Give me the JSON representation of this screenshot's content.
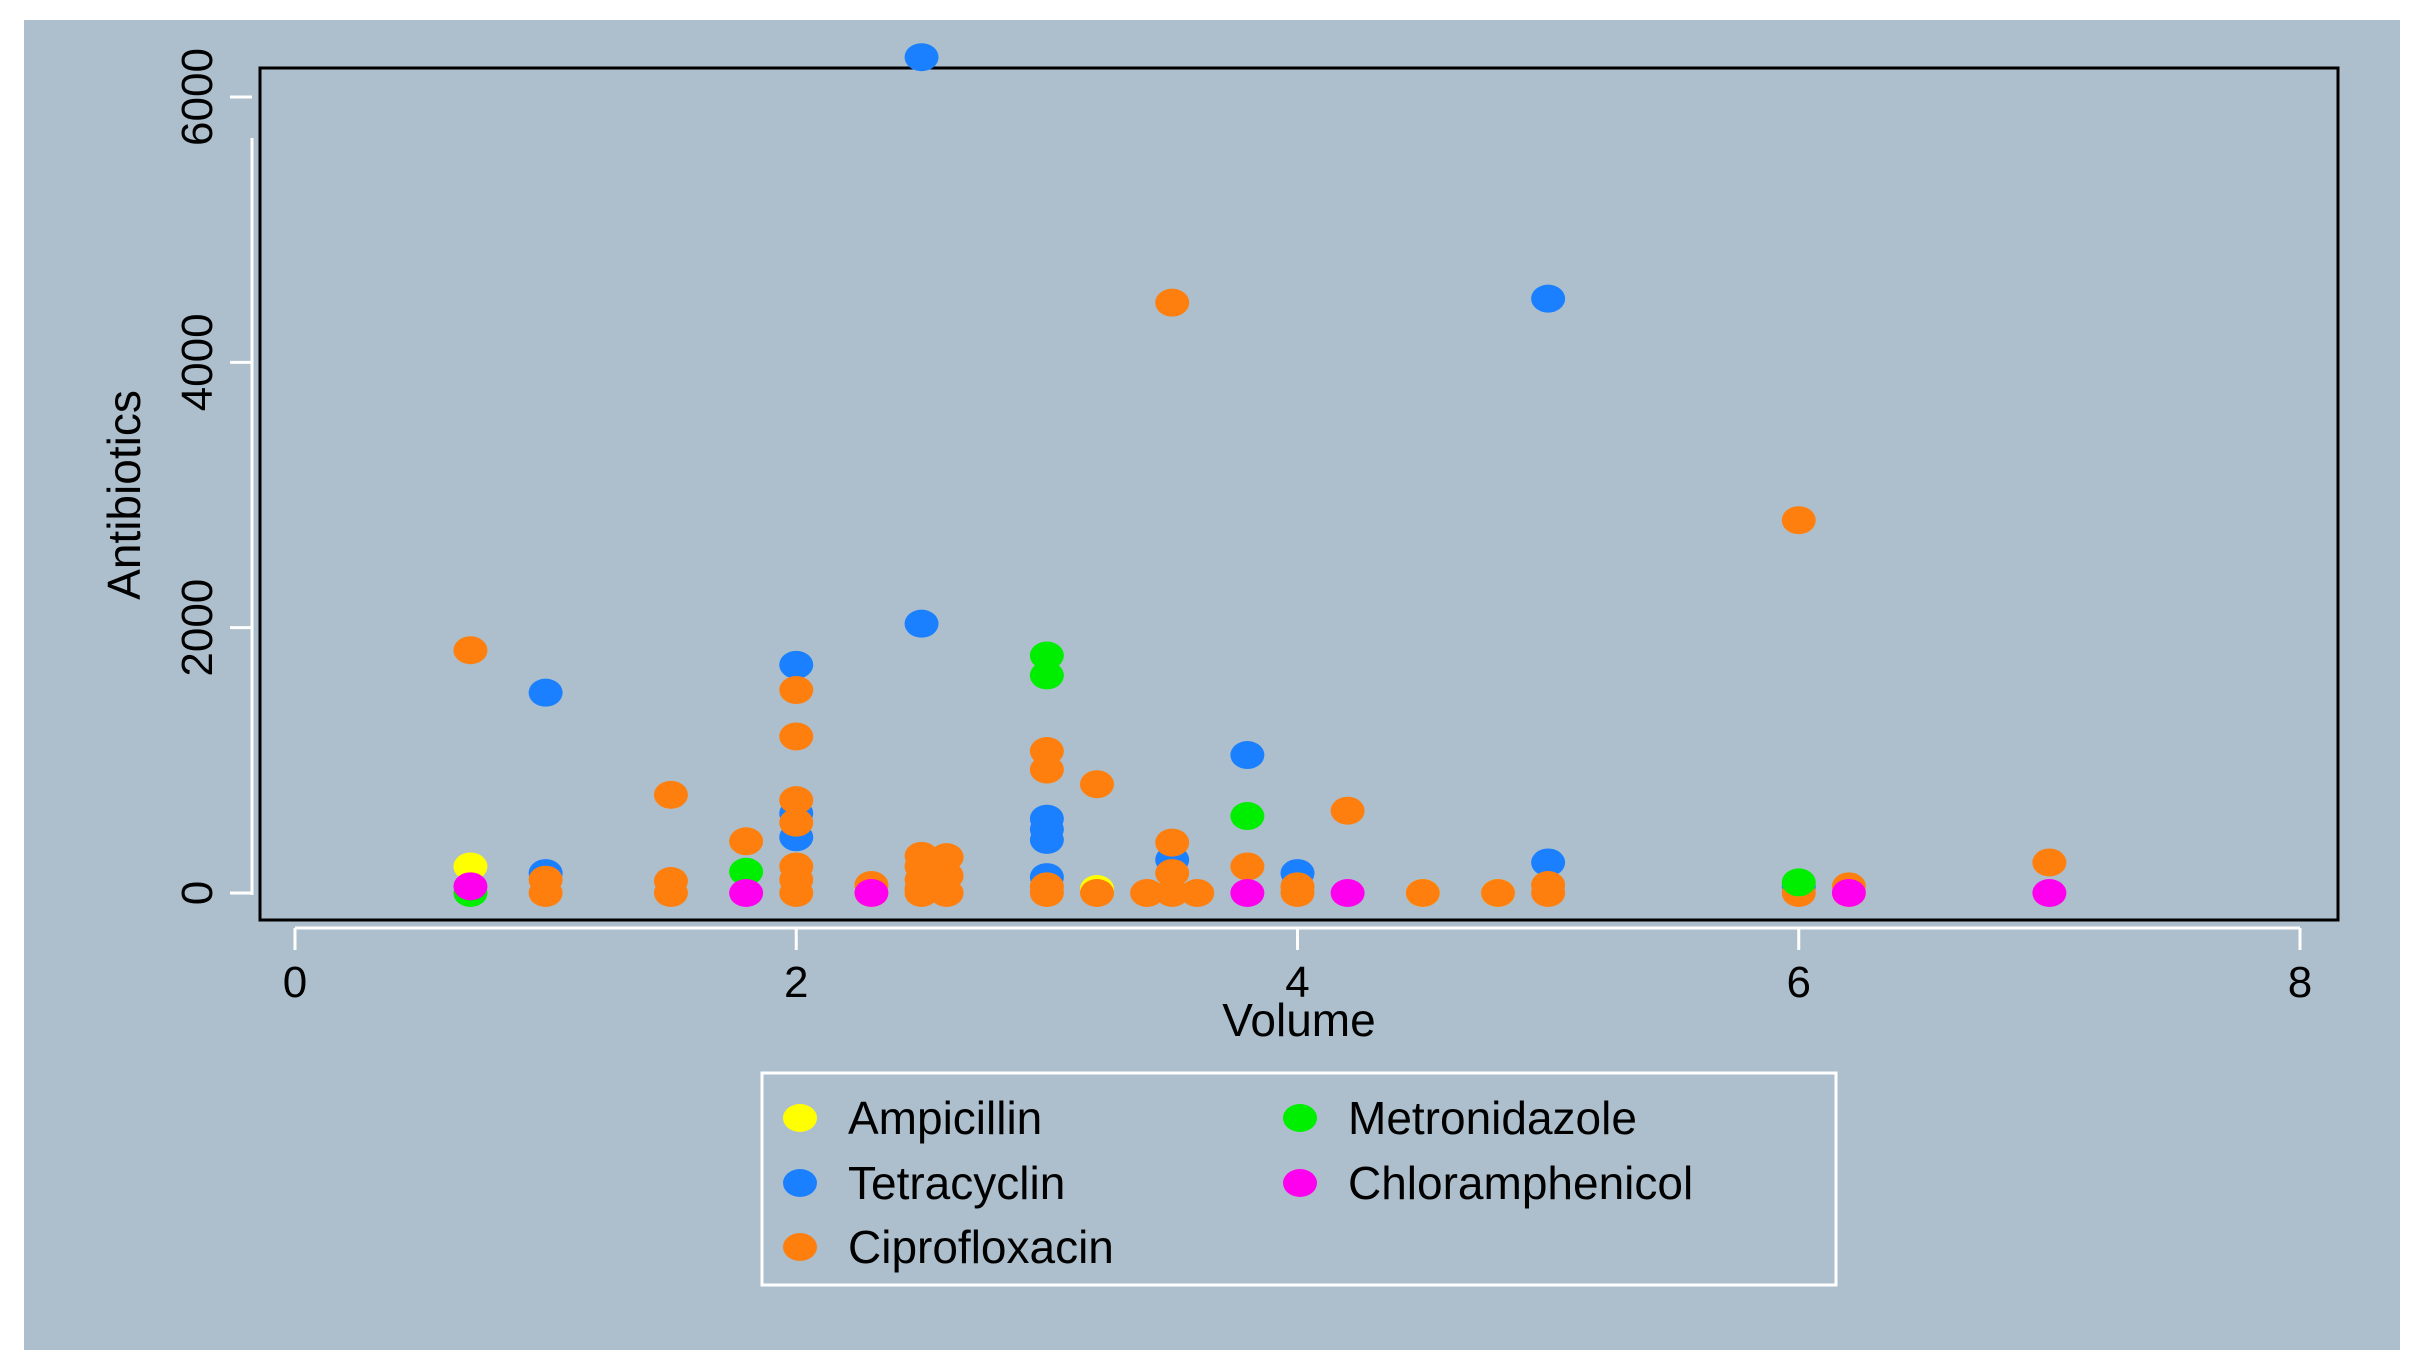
{
  "chart_data": {
    "type": "scatter",
    "title": "",
    "xlabel": "Volume",
    "ylabel": "Antibiotics",
    "xlim": [
      0,
      8
    ],
    "ylim": [
      0,
      6000
    ],
    "x_ticks": [
      0,
      2,
      4,
      6,
      8
    ],
    "y_ticks": [
      0,
      2000,
      4000,
      6000
    ],
    "x_tick_labels": [
      "0",
      "2",
      "4",
      "6",
      "8"
    ],
    "y_tick_labels": [
      "0",
      "2000",
      "4000",
      "6000"
    ],
    "grid": false,
    "legend_position": "bottom",
    "background_color": "#adbfcc",
    "series": [
      {
        "name": "Ampicillin",
        "color": "#ffff00",
        "points": [
          [
            0.7,
            200
          ],
          [
            3.2,
            30
          ],
          [
            4.5,
            0
          ],
          [
            4.8,
            0
          ],
          [
            6.2,
            0
          ],
          [
            2.3,
            0
          ]
        ]
      },
      {
        "name": "Tetracyclin",
        "color": "#1a80ff",
        "points": [
          [
            1.0,
            1510
          ],
          [
            1.0,
            150
          ],
          [
            2.0,
            1720
          ],
          [
            2.0,
            600
          ],
          [
            2.0,
            420
          ],
          [
            2.5,
            6300
          ],
          [
            2.5,
            2030
          ],
          [
            3.0,
            560
          ],
          [
            3.0,
            480
          ],
          [
            3.0,
            400
          ],
          [
            3.0,
            120
          ],
          [
            3.5,
            250
          ],
          [
            3.8,
            1040
          ],
          [
            4.0,
            150
          ],
          [
            5.0,
            4480
          ],
          [
            5.0,
            230
          ],
          [
            6.0,
            50
          ]
        ]
      },
      {
        "name": "Ciprofloxacin",
        "color": "#ff7f0e",
        "points": [
          [
            0.7,
            1830
          ],
          [
            1.0,
            100
          ],
          [
            1.0,
            0
          ],
          [
            1.5,
            740
          ],
          [
            1.5,
            90
          ],
          [
            1.5,
            0
          ],
          [
            1.8,
            390
          ],
          [
            2.0,
            1530
          ],
          [
            2.0,
            1180
          ],
          [
            2.0,
            700
          ],
          [
            2.0,
            530
          ],
          [
            2.0,
            200
          ],
          [
            2.0,
            100
          ],
          [
            2.0,
            0
          ],
          [
            2.3,
            60
          ],
          [
            2.5,
            280
          ],
          [
            2.5,
            200
          ],
          [
            2.5,
            100
          ],
          [
            2.5,
            30
          ],
          [
            2.5,
            0
          ],
          [
            2.6,
            270
          ],
          [
            2.6,
            130
          ],
          [
            2.6,
            0
          ],
          [
            3.0,
            1070
          ],
          [
            3.0,
            930
          ],
          [
            3.0,
            50
          ],
          [
            3.0,
            0
          ],
          [
            3.2,
            820
          ],
          [
            3.2,
            0
          ],
          [
            3.4,
            0
          ],
          [
            3.5,
            4450
          ],
          [
            3.5,
            380
          ],
          [
            3.5,
            150
          ],
          [
            3.5,
            0
          ],
          [
            3.6,
            0
          ],
          [
            3.8,
            200
          ],
          [
            4.0,
            50
          ],
          [
            4.0,
            0
          ],
          [
            4.2,
            620
          ],
          [
            4.5,
            0
          ],
          [
            4.8,
            0
          ],
          [
            5.0,
            60
          ],
          [
            5.0,
            0
          ],
          [
            6.0,
            2810
          ],
          [
            6.0,
            0
          ],
          [
            6.2,
            50
          ],
          [
            7.0,
            230
          ]
        ]
      },
      {
        "name": "Metronidazole",
        "color": "#00ee00",
        "points": [
          [
            0.7,
            0
          ],
          [
            1.8,
            160
          ],
          [
            3.0,
            1790
          ],
          [
            3.0,
            1640
          ],
          [
            3.8,
            580
          ],
          [
            6.0,
            80
          ]
        ]
      },
      {
        "name": "Chloramphenicol",
        "color": "#ff00ee",
        "points": [
          [
            0.7,
            50
          ],
          [
            1.8,
            0
          ],
          [
            2.3,
            0
          ],
          [
            3.8,
            0
          ],
          [
            4.2,
            0
          ],
          [
            6.2,
            0
          ],
          [
            7.0,
            0
          ]
        ]
      }
    ]
  }
}
